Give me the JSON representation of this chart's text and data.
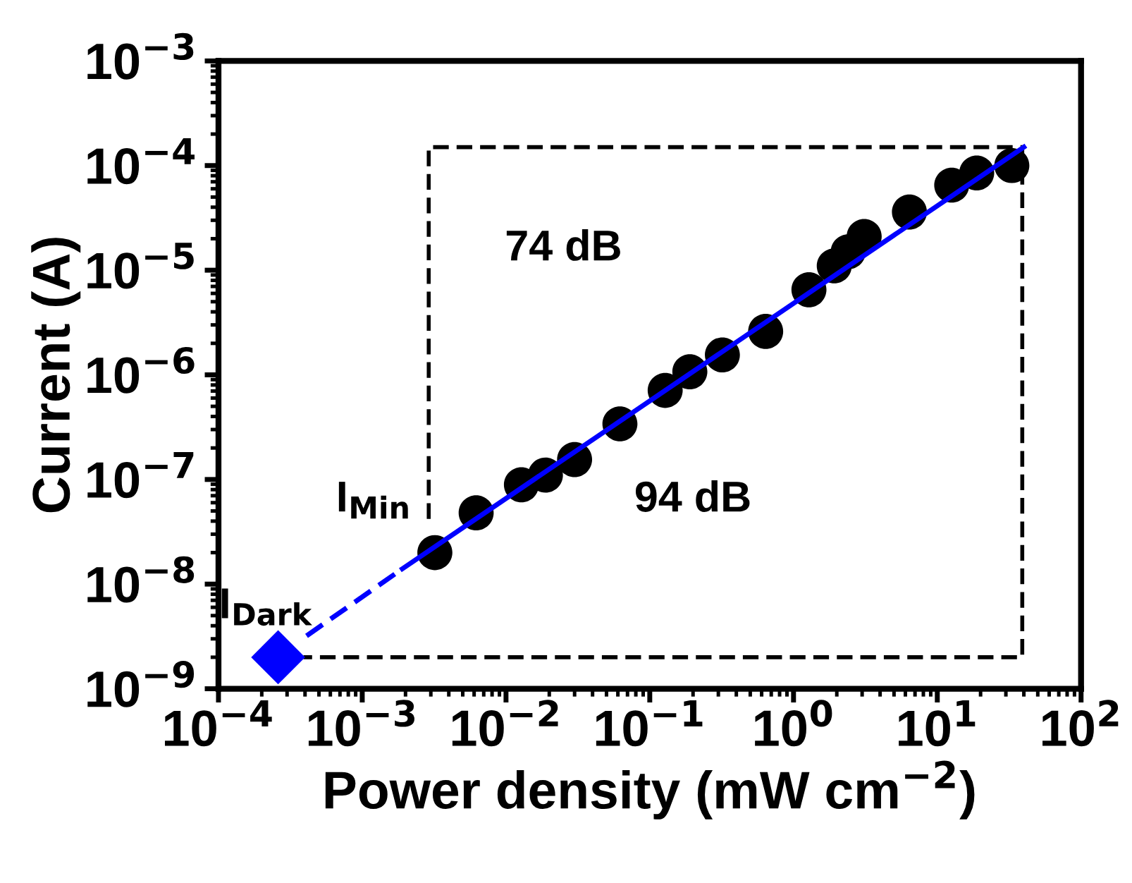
{
  "chart_data": {
    "type": "scatter",
    "xlabel": "Power density (mW cm$^{−2}$)",
    "ylabel": "Current (A)",
    "log": "xy",
    "grid": false,
    "legend": false,
    "xlim": [
      0.0001,
      100
    ],
    "ylim": [
      1e-09,
      0.001
    ],
    "xticks": [
      {
        "value": 0.0001,
        "label": "10$^{−4}$"
      },
      {
        "value": 0.001,
        "label": "10$^{−3}$"
      },
      {
        "value": 0.01,
        "label": "10$^{−2}$"
      },
      {
        "value": 0.1,
        "label": "10$^{−1}$"
      },
      {
        "value": 1,
        "label": "10$^{0}$"
      },
      {
        "value": 10,
        "label": "10$^{1}$"
      },
      {
        "value": 100,
        "label": "10$^{2}$"
      }
    ],
    "yticks": [
      {
        "value": 1e-09,
        "label": "10$^{−9}$"
      },
      {
        "value": 1e-08,
        "label": "10$^{−8}$"
      },
      {
        "value": 1e-07,
        "label": "10$^{−7}$"
      },
      {
        "value": 1e-06,
        "label": "10$^{−6}$"
      },
      {
        "value": 1e-05,
        "label": "10$^{−5}$"
      },
      {
        "value": 0.0001,
        "label": "10$^{−4}$"
      },
      {
        "value": 0.001,
        "label": "10$^{−3}$"
      }
    ],
    "series": [
      {
        "type": "line",
        "color": "#000000",
        "line_style": "dashed",
        "marker": "none",
        "x": [
          0.0029,
          0.0029,
          39,
          39,
          0.00039
        ],
        "values": [
          4.2e-08,
          0.00015,
          0.00015,
          2e-09,
          2e-09
        ]
      },
      {
        "color": "#000000",
        "marker": "circle",
        "x": [
          0.0032,
          0.0062,
          0.0128,
          0.0188,
          0.03,
          0.062,
          0.128,
          0.19,
          0.32,
          0.64,
          1.28,
          1.92,
          2.4,
          3.1,
          6.4,
          12.6,
          18.8,
          33
        ],
        "values": [
          2e-08,
          4.8e-08,
          8.9e-08,
          1.1e-07,
          1.55e-07,
          3.4e-07,
          7.1e-07,
          1.07e-06,
          1.55e-06,
          2.6e-06,
          6.5e-06,
          1.1e-05,
          1.5e-05,
          2.1e-05,
          3.6e-05,
          6.5e-05,
          8.5e-05,
          0.0001
        ]
      },
      {
        "type": "line",
        "color": "#0000ff",
        "line_style": "solid",
        "marker": "none",
        "x": [
          0.0019,
          40
        ],
        "values": [
          1.4e-08,
          0.00015
        ]
      },
      {
        "type": "line",
        "color": "#0000ff",
        "line_style": "dashed",
        "marker": "none",
        "x": [
          0.00041,
          0.0019
        ],
        "values": [
          3.2e-09,
          1.4e-08
        ]
      },
      {
        "color": "#0000ff",
        "marker": "diamond",
        "x": [
          0.00026
        ],
        "values": [
          2e-09
        ]
      }
    ],
    "annotations": [
      "74 dB",
      "94 dB",
      "I$_{Min}$",
      "I$_{Dark}$"
    ]
  }
}
